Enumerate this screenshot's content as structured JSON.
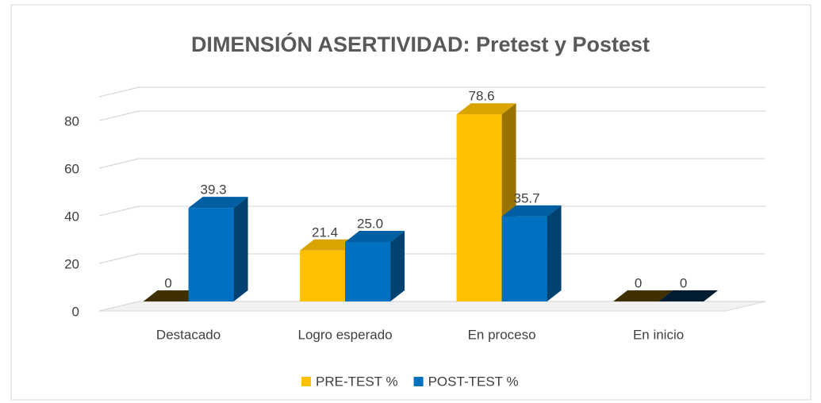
{
  "chart_data": {
    "type": "bar3d",
    "title": "DIMENSIÓN ASERTIVIDAD: Pretest y Postest",
    "categories": [
      "Destacado",
      "Logro esperado",
      "En proceso",
      "En inicio"
    ],
    "series": [
      {
        "name": "PRE-TEST %",
        "color": "#FFC000",
        "values": [
          0,
          21.4,
          78.6,
          0
        ]
      },
      {
        "name": "POST-TEST %",
        "color": "#0070C0",
        "values": [
          39.3,
          25.0,
          35.7,
          0
        ],
        "value_labels": [
          "39.3",
          "25.0",
          "35.7",
          "0"
        ]
      }
    ],
    "ylim": [
      0,
      90
    ],
    "yticks": [
      0,
      20,
      40,
      60,
      80
    ],
    "grid": true,
    "legend": "bottom"
  }
}
